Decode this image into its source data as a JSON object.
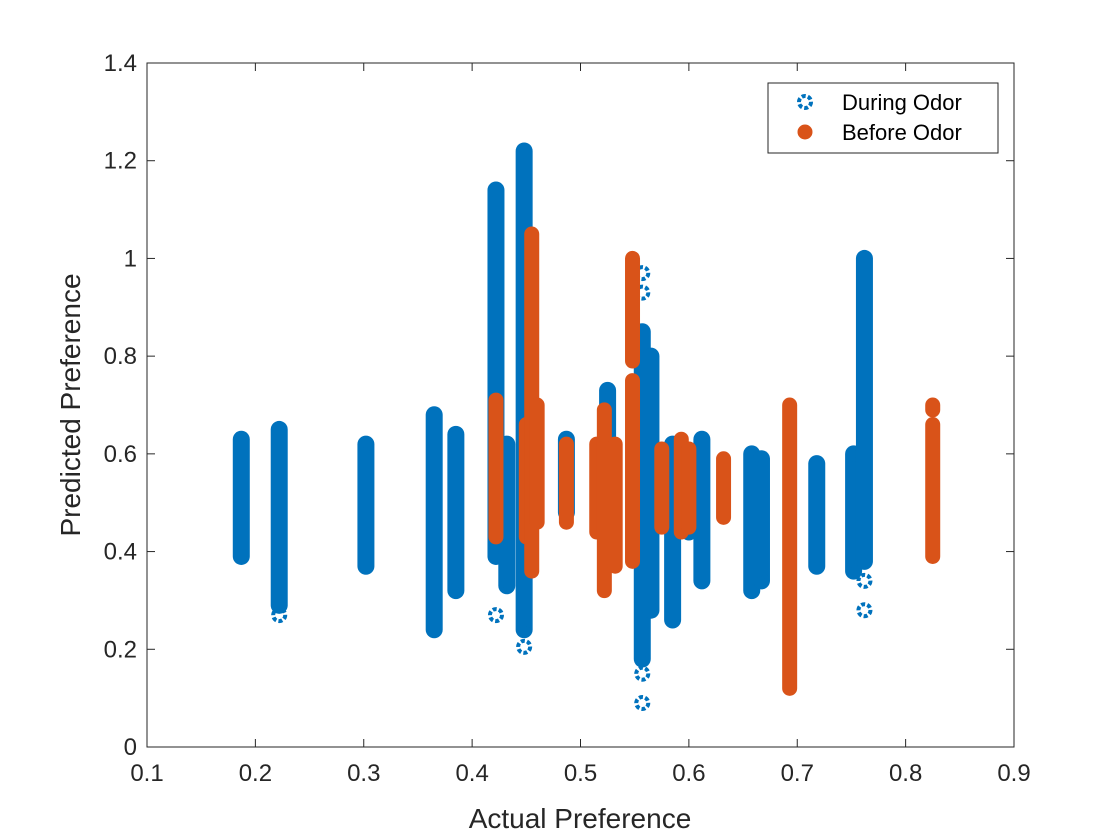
{
  "chart_data": {
    "type": "scatter",
    "title": "",
    "xlabel": "Actual Preference",
    "ylabel": "Predicted Preference",
    "xlim": [
      0.1,
      0.9
    ],
    "ylim": [
      0,
      1.4
    ],
    "xticks": [
      "0.1",
      "0.2",
      "0.3",
      "0.4",
      "0.5",
      "0.6",
      "0.7",
      "0.8",
      "0.9"
    ],
    "yticks": [
      "0",
      "0.2",
      "0.4",
      "0.6",
      "0.8",
      "1",
      "1.2",
      "1.4"
    ],
    "grid": false,
    "legend_position": "top-right",
    "series": [
      {
        "name": "During Odor",
        "marker": "open-circle",
        "color": "#0072BD",
        "columns": [
          {
            "x": 0.187,
            "y_min": 0.39,
            "y_max": 0.63,
            "outliers": []
          },
          {
            "x": 0.222,
            "y_min": 0.29,
            "y_max": 0.65,
            "outliers": [
              0.27
            ]
          },
          {
            "x": 0.302,
            "y_min": 0.37,
            "y_max": 0.62,
            "outliers": []
          },
          {
            "x": 0.365,
            "y_min": 0.24,
            "y_max": 0.68,
            "outliers": []
          },
          {
            "x": 0.385,
            "y_min": 0.32,
            "y_max": 0.64,
            "outliers": []
          },
          {
            "x": 0.422,
            "y_min": 0.39,
            "y_max": 1.14,
            "outliers": [
              0.27
            ]
          },
          {
            "x": 0.432,
            "y_min": 0.33,
            "y_max": 0.62,
            "outliers": []
          },
          {
            "x": 0.448,
            "y_min": 0.24,
            "y_max": 1.22,
            "outliers": [
              0.205
            ]
          },
          {
            "x": 0.487,
            "y_min": 0.48,
            "y_max": 0.63,
            "outliers": []
          },
          {
            "x": 0.525,
            "y_min": 0.52,
            "y_max": 0.73,
            "outliers": []
          },
          {
            "x": 0.557,
            "y_min": 0.18,
            "y_max": 0.85,
            "outliers": [
              0.09,
              0.15,
              0.93,
              0.97
            ]
          },
          {
            "x": 0.565,
            "y_min": 0.28,
            "y_max": 0.8,
            "outliers": []
          },
          {
            "x": 0.585,
            "y_min": 0.26,
            "y_max": 0.62,
            "outliers": []
          },
          {
            "x": 0.6,
            "y_min": 0.44,
            "y_max": 0.6,
            "outliers": []
          },
          {
            "x": 0.612,
            "y_min": 0.34,
            "y_max": 0.63,
            "outliers": []
          },
          {
            "x": 0.658,
            "y_min": 0.32,
            "y_max": 0.6,
            "outliers": []
          },
          {
            "x": 0.667,
            "y_min": 0.34,
            "y_max": 0.59,
            "outliers": []
          },
          {
            "x": 0.718,
            "y_min": 0.37,
            "y_max": 0.58,
            "outliers": []
          },
          {
            "x": 0.752,
            "y_min": 0.36,
            "y_max": 0.6,
            "outliers": []
          },
          {
            "x": 0.762,
            "y_min": 0.38,
            "y_max": 1.0,
            "outliers": [
              0.28,
              0.34
            ]
          }
        ]
      },
      {
        "name": "Before Odor",
        "marker": "filled-circle",
        "color": "#D95319",
        "columns": [
          {
            "x": 0.422,
            "y_min": 0.43,
            "y_max": 0.71
          },
          {
            "x": 0.45,
            "y_min": 0.43,
            "y_max": 0.66
          },
          {
            "x": 0.455,
            "y_min": 0.36,
            "y_max": 1.05
          },
          {
            "x": 0.46,
            "y_min": 0.46,
            "y_max": 0.7
          },
          {
            "x": 0.487,
            "y_min": 0.46,
            "y_max": 0.62
          },
          {
            "x": 0.515,
            "y_min": 0.44,
            "y_max": 0.62
          },
          {
            "x": 0.522,
            "y_min": 0.32,
            "y_max": 0.69
          },
          {
            "x": 0.532,
            "y_min": 0.37,
            "y_max": 0.62
          },
          {
            "x": 0.548,
            "y_min": 0.38,
            "y_max": 0.75
          },
          {
            "x": 0.548,
            "y_min": 0.79,
            "y_max": 1.0
          },
          {
            "x": 0.575,
            "y_min": 0.45,
            "y_max": 0.61
          },
          {
            "x": 0.593,
            "y_min": 0.44,
            "y_max": 0.63
          },
          {
            "x": 0.6,
            "y_min": 0.45,
            "y_max": 0.61
          },
          {
            "x": 0.632,
            "y_min": 0.47,
            "y_max": 0.59
          },
          {
            "x": 0.693,
            "y_min": 0.12,
            "y_max": 0.7
          },
          {
            "x": 0.825,
            "y_min": 0.39,
            "y_max": 0.66
          },
          {
            "x": 0.825,
            "y_min": 0.69,
            "y_max": 0.7
          }
        ]
      }
    ]
  }
}
